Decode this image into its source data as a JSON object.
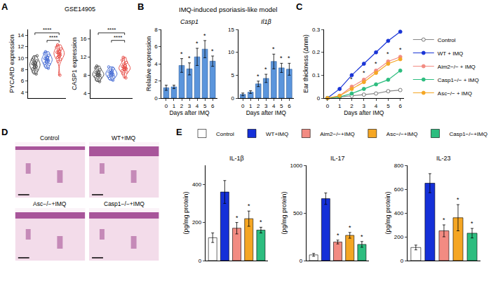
{
  "chart_data": [
    {
      "panel": "A",
      "type": "violin",
      "title": "GSE14905",
      "charts": [
        {
          "y_title": "PYCARD expression",
          "categories": [
            null,
            null,
            null
          ],
          "tick_labels": "y",
          "ylim": [
            3,
            15
          ],
          "yticks": [
            4,
            6,
            8,
            10,
            12,
            14
          ],
          "series": [
            {
              "color": "#555555",
              "values": [
                7.2,
                7.6,
                7.9,
                8.1,
                8.3,
                8.5,
                8.6,
                8.8,
                8.9,
                9.0,
                9.1,
                9.3,
                9.5,
                9.7,
                10.0,
                10.4
              ]
            },
            {
              "color": "#4a6fd6",
              "values": [
                8.2,
                8.6,
                8.9,
                9.1,
                9.3,
                9.5,
                9.6,
                9.7,
                9.8,
                9.9,
                10.1,
                10.3,
                10.5,
                10.8,
                11.1
              ]
            },
            {
              "color": "#e8504a",
              "values": [
                7.0,
                9.4,
                9.8,
                10.1,
                10.3,
                10.5,
                10.6,
                10.8,
                10.9,
                11.0,
                11.2,
                11.4,
                11.6,
                11.9,
                12.3
              ]
            }
          ],
          "comparisons": [
            {
              "from": 0,
              "to": 2,
              "text": "****"
            },
            {
              "from": 1,
              "to": 2,
              "text": "****"
            }
          ]
        },
        {
          "y_title": "CASP1 expression",
          "categories": [
            null,
            null,
            null
          ],
          "tick_labels": "y",
          "ylim": [
            3,
            18
          ],
          "yticks": [
            4,
            8,
            12,
            16
          ],
          "series": [
            {
              "color": "#555555",
              "values": [
                6.6,
                7.0,
                7.4,
                7.7,
                7.9,
                8.0,
                8.1,
                8.2,
                8.3,
                8.5,
                8.7,
                8.9,
                9.2,
                9.6,
                10.0
              ]
            },
            {
              "color": "#4a6fd6",
              "values": [
                6.9,
                7.3,
                7.6,
                7.8,
                8.0,
                8.1,
                8.3,
                8.4,
                8.5,
                8.7,
                8.9,
                9.1,
                9.4,
                9.8
              ]
            },
            {
              "color": "#e8504a",
              "values": [
                7.4,
                8.3,
                8.7,
                9.0,
                9.2,
                9.4,
                9.5,
                9.6,
                9.7,
                9.9,
                10.1,
                10.4,
                10.8,
                11.3,
                11.9
              ]
            }
          ],
          "comparisons": [
            {
              "from": 0,
              "to": 2,
              "text": "****"
            },
            {
              "from": 1,
              "to": 2,
              "text": "****"
            }
          ]
        }
      ]
    },
    {
      "panel": "B",
      "type": "bar",
      "title": "IMQ-induced psoriasis-like model",
      "x_title": "Days after IMQ",
      "y_title": "Relative expression",
      "color": "#5b95dc",
      "categories": [
        "0",
        "1",
        "2",
        "3",
        "4",
        "5",
        "6"
      ],
      "charts": [
        {
          "title": "Casp1",
          "values": [
            1.2,
            1.3,
            3.8,
            3.4,
            4.8,
            5.7,
            4.3
          ],
          "errors": [
            0.3,
            0.2,
            0.8,
            0.7,
            1.0,
            1.0,
            0.6
          ],
          "ylim": [
            0,
            8
          ],
          "yticks": [
            0,
            2,
            4,
            6,
            8
          ],
          "annotations": [
            {
              "x": 2,
              "text": "*"
            },
            {
              "x": 3,
              "text": "*"
            },
            {
              "x": 4,
              "text": "*"
            },
            {
              "x": 5,
              "text": "*"
            },
            {
              "x": 6,
              "text": "*"
            }
          ]
        },
        {
          "title": "Il1β",
          "values": [
            0.8,
            1.3,
            3.1,
            4.3,
            8.0,
            6.6,
            6.3
          ],
          "errors": [
            0.3,
            0.3,
            0.6,
            0.9,
            1.6,
            1.0,
            1.3
          ],
          "ylim": [
            0,
            15
          ],
          "yticks": [
            0,
            5,
            10,
            15
          ],
          "annotations": [
            {
              "x": 2,
              "text": "*"
            },
            {
              "x": 3,
              "text": "*"
            },
            {
              "x": 4,
              "text": "*"
            },
            {
              "x": 5,
              "text": "*"
            },
            {
              "x": 6,
              "text": "*"
            }
          ]
        }
      ]
    },
    {
      "panel": "C",
      "type": "line",
      "x_title": "Days after IMQ",
      "y_title": "Ear thickness (Δmm)",
      "x": [
        0,
        1,
        2,
        3,
        4,
        5,
        6
      ],
      "xlim": [
        -0.3,
        6.3
      ],
      "xticks": [
        0,
        1,
        2,
        3,
        4,
        5,
        6
      ],
      "ylim": [
        0,
        0.3
      ],
      "yticks": [
        0,
        0.1,
        0.2,
        0.3
      ],
      "legend": "right",
      "marker": "circle",
      "series": [
        {
          "name": "Control",
          "color": "#ffffff",
          "values": [
            0,
            0.005,
            0.01,
            0.015,
            0.02,
            0.03,
            0.035
          ]
        },
        {
          "name": "WT + IMQ",
          "color": "#1a35d6",
          "values": [
            0,
            0.04,
            0.1,
            0.15,
            0.2,
            0.25,
            0.29
          ]
        },
        {
          "name": "Aim2−/− + IMQ",
          "color": "#f28b82",
          "values": [
            0,
            0.01,
            0.05,
            0.08,
            0.12,
            0.16,
            0.18
          ]
        },
        {
          "name": "Casp1−/− + IMQ",
          "color": "#2dbd7f",
          "values": [
            0,
            0.005,
            0.02,
            0.04,
            0.06,
            0.08,
            0.12
          ]
        },
        {
          "name": "Asc−/− + IMQ",
          "color": "#f5a623",
          "values": [
            0,
            0.01,
            0.04,
            0.07,
            0.11,
            0.15,
            0.17
          ]
        }
      ],
      "annotations": [
        {
          "x": 2,
          "y": 0.06,
          "text": "*"
        },
        {
          "x": 3,
          "y": 0.09,
          "text": "*"
        },
        {
          "x": 4,
          "y": 0.13,
          "text": "*"
        },
        {
          "x": 5,
          "y": 0.17,
          "text": "*"
        },
        {
          "x": 6,
          "y": 0.19,
          "text": "*"
        }
      ]
    },
    {
      "panel": "D",
      "type": "image_grid",
      "images": [
        "Control",
        "WT+IMQ",
        "Asc−/−+IMQ",
        "Casp1−/−+IMQ"
      ]
    },
    {
      "panel": "E",
      "type": "bar",
      "legend": "top",
      "tick_labels": "y",
      "categories": [
        null,
        null,
        null,
        null,
        null
      ],
      "names": [
        "Control",
        "WT+IMQ",
        "Aim2−/−+IMQ",
        "Asc−/−+IMQ",
        "Casp1−/−+IMQ"
      ],
      "colors": [
        "#ffffff",
        "#1530d8",
        "#f28b82",
        "#f5a623",
        "#2dbd7f"
      ],
      "charts": [
        {
          "title": "IL-1β",
          "y_title": "(pg/mg protein)",
          "values": [
            120,
            360,
            170,
            220,
            160
          ],
          "errors": [
            25,
            60,
            30,
            40,
            15
          ],
          "ylim": [
            0,
            500
          ],
          "yticks": [
            0,
            200,
            400
          ],
          "annotations": [
            {
              "x": 2,
              "text": "*"
            },
            {
              "x": 3,
              "text": "*"
            },
            {
              "x": 4,
              "text": "*"
            }
          ]
        },
        {
          "title": "IL-17",
          "y_title": "(pg/mg protein)",
          "values": [
            60,
            650,
            195,
            265,
            170
          ],
          "errors": [
            15,
            60,
            20,
            30,
            30
          ],
          "ylim": [
            0,
            1000
          ],
          "yticks": [
            0,
            500,
            1000
          ],
          "annotations": [
            {
              "x": 2,
              "text": "*"
            },
            {
              "x": 3,
              "text": "*"
            },
            {
              "x": 4,
              "text": "*"
            }
          ]
        },
        {
          "title": "IL-23",
          "y_title": "(pg/mg protein)",
          "values": [
            110,
            650,
            250,
            360,
            230
          ],
          "errors": [
            20,
            80,
            50,
            110,
            40
          ],
          "ylim": [
            0,
            800
          ],
          "yticks": [
            0,
            200,
            400,
            600,
            800
          ],
          "annotations": [
            {
              "x": 2,
              "text": "*"
            },
            {
              "x": 3,
              "text": "*"
            },
            {
              "x": 4,
              "text": "*"
            }
          ]
        }
      ]
    }
  ]
}
